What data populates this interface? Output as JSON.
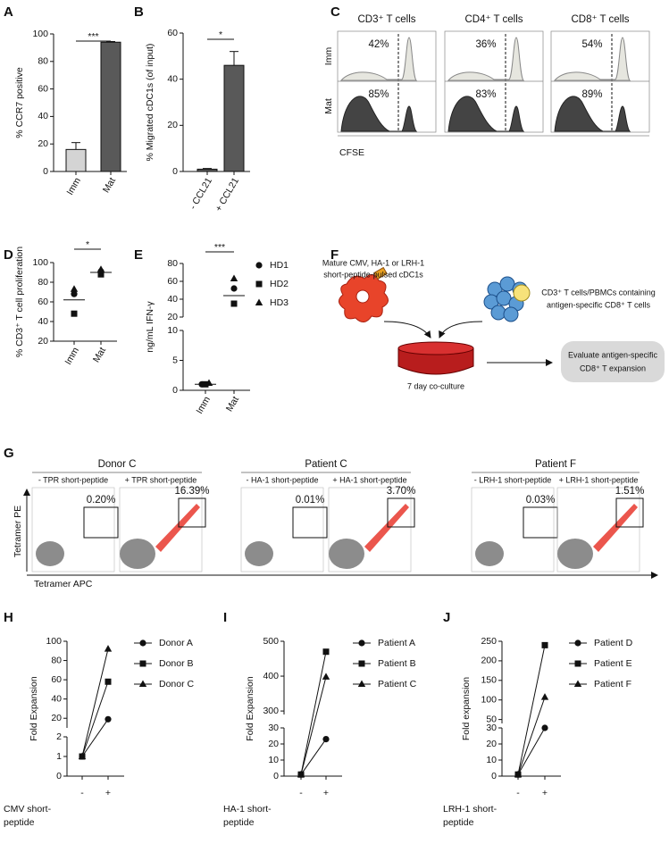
{
  "panel_labels": [
    "A",
    "B",
    "C",
    "D",
    "E",
    "F",
    "G",
    "H",
    "I",
    "J"
  ],
  "chart_data": [
    {
      "type": "bar",
      "y_label": "% CCR7 positive",
      "categories": [
        "Imm",
        "Mat"
      ],
      "values": [
        16,
        94
      ],
      "errors": [
        5,
        0.5
      ],
      "colors": [
        "#d4d4d4",
        "#595959"
      ],
      "ylim": [
        0,
        100
      ],
      "yticks": [
        0,
        20,
        40,
        60,
        80,
        100
      ],
      "significance": "***"
    },
    {
      "type": "bar",
      "y_label": "% Migrated cDC1s (of input)",
      "categories": [
        "- CCL21",
        "+ CCL21"
      ],
      "values": [
        1,
        46
      ],
      "errors": [
        0.3,
        6
      ],
      "colors": [
        "#595959",
        "#595959"
      ],
      "ylim": [
        0,
        60
      ],
      "yticks": [
        0,
        20,
        40,
        60
      ],
      "significance": "*"
    },
    {
      "type": "dot",
      "y_label": "% CD3⁺ T cell proliferation",
      "categories": [
        "Imm",
        "Mat"
      ],
      "series": [
        {
          "marker": "circle",
          "values": [
            68,
            91
          ]
        },
        {
          "marker": "square",
          "values": [
            48,
            88
          ]
        },
        {
          "marker": "triangle",
          "values": [
            73,
            93
          ]
        }
      ],
      "means": [
        62,
        90
      ],
      "ylim": [
        20,
        100
      ],
      "yticks": [
        20,
        40,
        60,
        80,
        100
      ],
      "significance": "*"
    },
    {
      "type": "dot",
      "y_label": "ng/mL IFN-γ",
      "categories": [
        "Imm",
        "Mat"
      ],
      "series": [
        {
          "name": "HD1",
          "marker": "circle",
          "values": [
            1,
            52
          ]
        },
        {
          "name": "HD2",
          "marker": "square",
          "values": [
            1,
            35
          ]
        },
        {
          "name": "HD3",
          "marker": "triangle",
          "values": [
            1.2,
            63
          ]
        }
      ],
      "means": [
        1,
        44
      ],
      "ylim_lower": [
        0,
        10
      ],
      "yticks_lower": [
        0,
        5,
        10
      ],
      "ylim_upper": [
        20,
        80
      ],
      "yticks_upper": [
        20,
        40,
        60,
        80
      ],
      "significance": "***"
    },
    {
      "type": "line",
      "y_label": "Fold Expansion",
      "x_label": [
        "CMV short-",
        "peptide"
      ],
      "categories": [
        "-",
        "+"
      ],
      "series": [
        {
          "name": "Donor A",
          "marker": "circle",
          "values": [
            1,
            19
          ]
        },
        {
          "name": "Donor B",
          "marker": "square",
          "values": [
            1,
            58
          ]
        },
        {
          "name": "Donor C",
          "marker": "triangle",
          "values": [
            1,
            92
          ]
        }
      ],
      "ylim_lower": [
        0,
        2
      ],
      "yticks_lower": [
        0,
        1,
        2
      ],
      "ylim_upper": [
        10,
        100
      ],
      "yticks_upper": [
        20,
        40,
        60,
        80,
        100
      ]
    },
    {
      "type": "line",
      "y_label": "Fold Expansion",
      "x_label": [
        "HA-1 short-",
        "peptide"
      ],
      "categories": [
        "-",
        "+"
      ],
      "series": [
        {
          "name": "Patient A",
          "marker": "circle",
          "values": [
            1,
            23
          ]
        },
        {
          "name": "Patient B",
          "marker": "square",
          "values": [
            1,
            470
          ]
        },
        {
          "name": "Patient C",
          "marker": "triangle",
          "values": [
            1,
            398
          ]
        }
      ],
      "ylim_lower": [
        0,
        30
      ],
      "yticks_lower": [
        0,
        10,
        20,
        30
      ],
      "ylim_upper": [
        290,
        500
      ],
      "yticks_upper": [
        300,
        400,
        500
      ]
    },
    {
      "type": "line",
      "y_label": "Fold expansion",
      "x_label": [
        "LRH-1 short-",
        "peptide"
      ],
      "categories": [
        "-",
        "+"
      ],
      "series": [
        {
          "name": "Patient D",
          "marker": "circle",
          "values": [
            1,
            30
          ]
        },
        {
          "name": "Patient E",
          "marker": "square",
          "values": [
            1,
            240
          ]
        },
        {
          "name": "Patient F",
          "marker": "triangle",
          "values": [
            1,
            107
          ]
        }
      ],
      "ylim_lower": [
        0,
        30
      ],
      "yticks_lower": [
        0,
        10,
        20,
        30
      ],
      "ylim_upper": [
        40,
        250
      ],
      "yticks_upper": [
        50,
        100,
        150,
        200,
        250
      ]
    }
  ],
  "histograms": {
    "titles": [
      "CD3⁺ T cells",
      "CD4⁺ T cells",
      "CD8⁺ T cells"
    ],
    "rows": [
      "Imm",
      "Mat"
    ],
    "percentages": [
      [
        "42%",
        "85%"
      ],
      [
        "36%",
        "83%"
      ],
      [
        "54%",
        "89%"
      ]
    ],
    "x_label": "CFSE"
  },
  "diagram": {
    "dc_label": [
      "Mature CMV, HA-1 or LRH-1",
      "short-peptide-pulsed cDC1s"
    ],
    "t_cell_label": [
      "CD3⁺ T cells/PBMCs containing",
      "antigen-specific CD8⁺ T cells"
    ],
    "culture_label": "7 day co-culture",
    "outcome_label": [
      "Evaluate antigen-specific",
      "CD8⁺ T expansion"
    ]
  },
  "flow": {
    "groups": [
      "Donor C",
      "Patient C",
      "Patient F"
    ],
    "conditions": [
      "- TPR short-peptide",
      "+ TPR short-peptide",
      "- HA-1 short-peptide",
      "+ HA-1 short-peptide",
      "- LRH-1 short-peptide",
      "+ LRH-1 short-peptide"
    ],
    "percentages": [
      "0.20%",
      "16.39%",
      "0.01%",
      "3.70%",
      "0.03%",
      "1.51%"
    ],
    "y_label": "Tetramer PE",
    "x_label": "Tetramer APC"
  }
}
